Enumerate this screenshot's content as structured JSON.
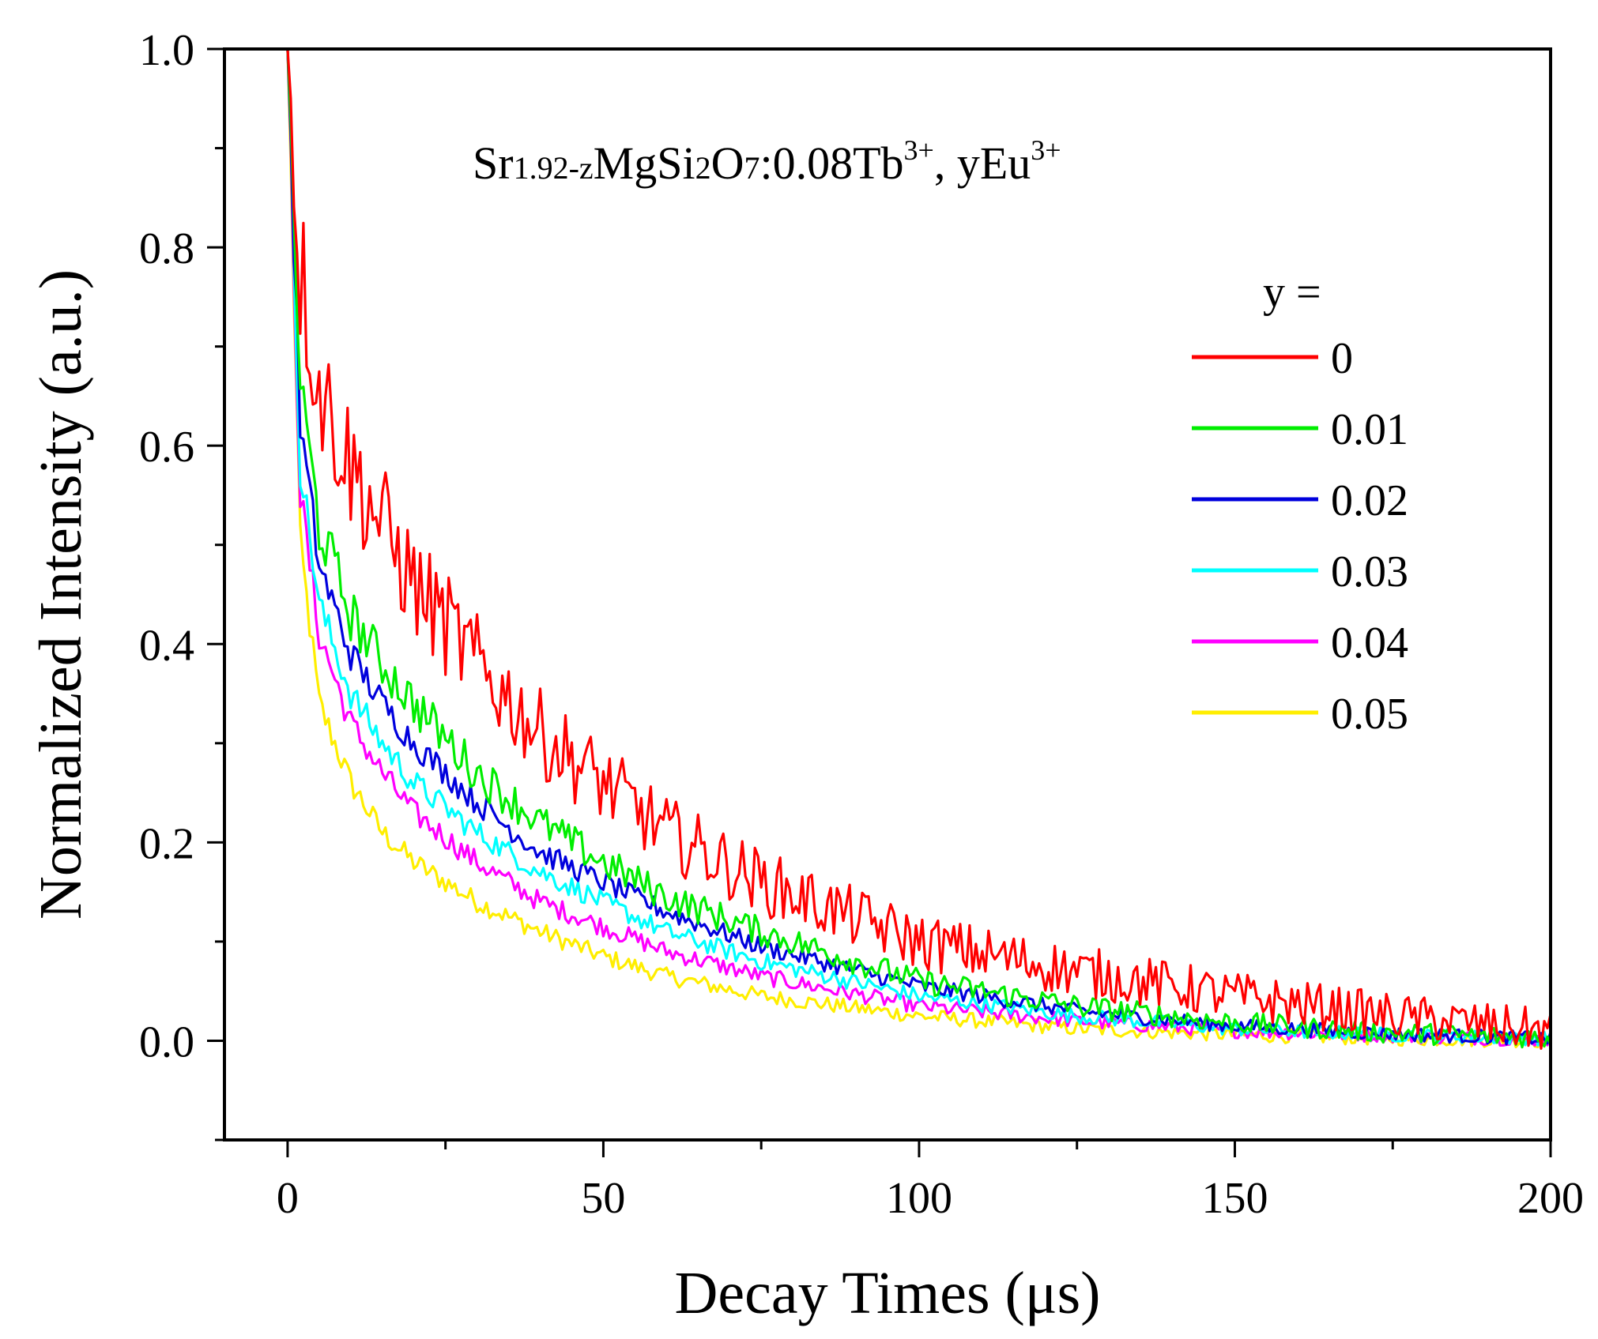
{
  "chart_data": {
    "type": "line",
    "xlabel": "Decay Times (μs)",
    "ylabel": "Normalized Intensity (a.u.)",
    "xlim": [
      -10,
      200
    ],
    "ylim": [
      -0.1,
      1.0
    ],
    "x_ticks": [
      0,
      50,
      100,
      150,
      200
    ],
    "x_tick_labels": [
      "0",
      "50",
      "100",
      "150",
      "200"
    ],
    "y_ticks": [
      0.0,
      0.2,
      0.4,
      0.6,
      0.8,
      1.0
    ],
    "y_tick_labels": [
      "0.0",
      "0.2",
      "0.4",
      "0.6",
      "0.8",
      "1.0"
    ],
    "annotation": {
      "base": "Sr",
      "sub1": "1.92-z",
      "mid1": "MgSi",
      "sub2": "2",
      "mid2": "O",
      "sub3": "7",
      "mid3": ":0.08Tb",
      "sup1": "3+",
      "mid4": ", yEu",
      "sup2": "3+"
    },
    "legend_title": "y =",
    "legend_position": "right",
    "x": [
      0,
      2,
      5,
      10,
      15,
      20,
      30,
      40,
      50,
      60,
      75,
      100,
      125,
      150,
      175,
      200
    ],
    "series": [
      {
        "name": "0",
        "color": "#ff0000",
        "noise": 0.06,
        "values": [
          1.0,
          0.78,
          0.66,
          0.58,
          0.52,
          0.46,
          0.38,
          0.31,
          0.26,
          0.21,
          0.16,
          0.1,
          0.07,
          0.045,
          0.025,
          0.01
        ]
      },
      {
        "name": "0.01",
        "color": "#00ee00",
        "noise": 0.03,
        "values": [
          1.0,
          0.66,
          0.52,
          0.43,
          0.38,
          0.34,
          0.27,
          0.22,
          0.18,
          0.145,
          0.11,
          0.06,
          0.035,
          0.018,
          0.008,
          0.003
        ]
      },
      {
        "name": "0.02",
        "color": "#0000dd",
        "noise": 0.02,
        "values": [
          1.0,
          0.62,
          0.48,
          0.39,
          0.34,
          0.3,
          0.24,
          0.19,
          0.16,
          0.13,
          0.095,
          0.055,
          0.03,
          0.015,
          0.007,
          0.002
        ]
      },
      {
        "name": "0.03",
        "color": "#00ffff",
        "noise": 0.02,
        "values": [
          1.0,
          0.58,
          0.44,
          0.35,
          0.3,
          0.26,
          0.21,
          0.17,
          0.14,
          0.11,
          0.08,
          0.045,
          0.025,
          0.012,
          0.006,
          0.002
        ]
      },
      {
        "name": "0.04",
        "color": "#ff00ff",
        "noise": 0.02,
        "values": [
          1.0,
          0.55,
          0.41,
          0.32,
          0.27,
          0.23,
          0.18,
          0.14,
          0.115,
          0.09,
          0.065,
          0.035,
          0.02,
          0.01,
          0.005,
          0.001
        ]
      },
      {
        "name": "0.05",
        "color": "#ffee00",
        "noise": 0.02,
        "values": [
          1.0,
          0.5,
          0.34,
          0.26,
          0.21,
          0.18,
          0.14,
          0.11,
          0.085,
          0.065,
          0.045,
          0.025,
          0.012,
          0.006,
          0.002,
          0.0
        ]
      }
    ]
  }
}
